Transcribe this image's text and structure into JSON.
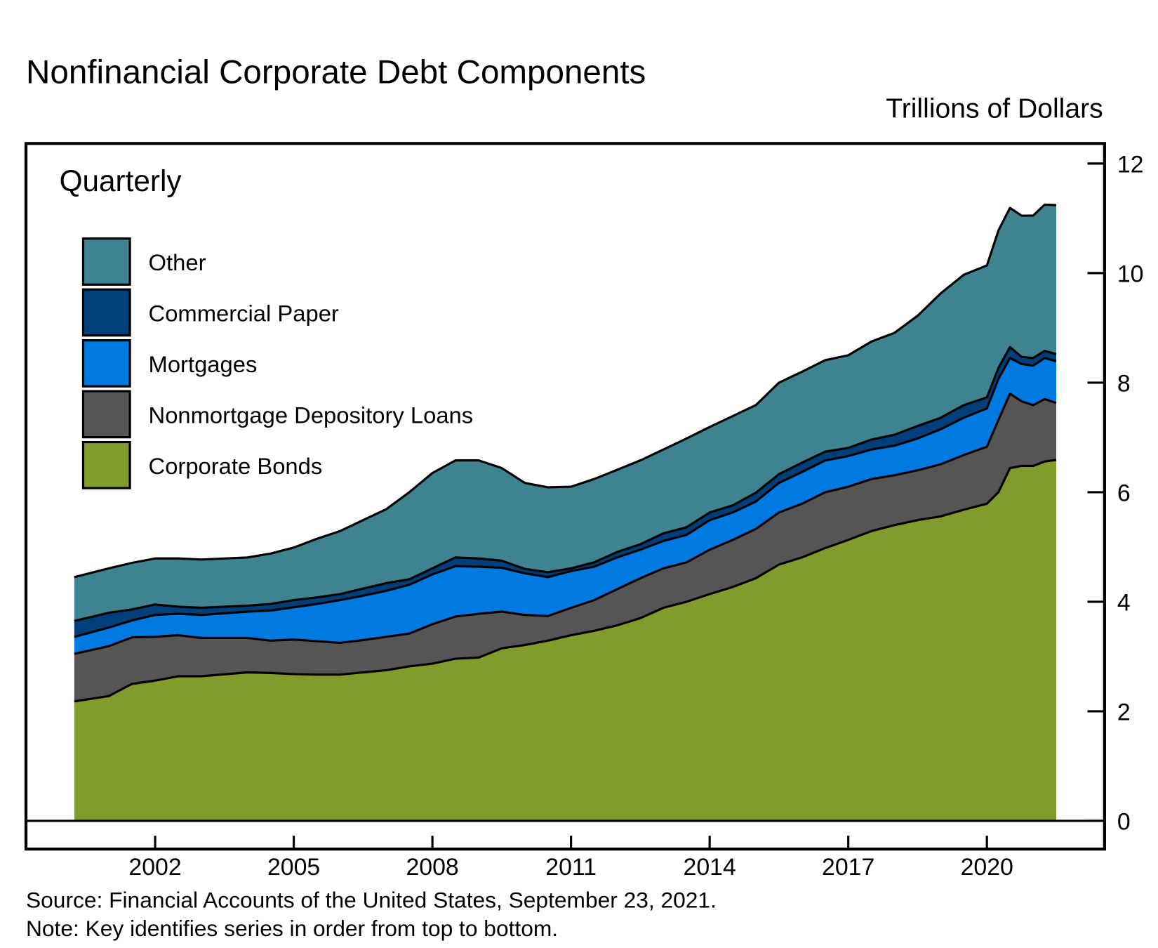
{
  "chart_data": {
    "type": "area",
    "stacked": true,
    "title": "Nonfinancial Corporate Debt Components",
    "ylabel": "Trillions of Dollars",
    "annotation": "Quarterly",
    "ylim": [
      0,
      12
    ],
    "yticks": [
      0,
      2,
      4,
      6,
      8,
      10,
      12
    ],
    "xticks": [
      2002,
      2005,
      2008,
      2011,
      2014,
      2017,
      2020
    ],
    "xlim": [
      1999.2,
      2022.4
    ],
    "grid": false,
    "legend_placement": "top-left",
    "x": [
      2000.25,
      2001,
      2001.5,
      2002,
      2002.5,
      2003,
      2004,
      2004.5,
      2005,
      2005.5,
      2006,
      2006.5,
      2007,
      2007.5,
      2008,
      2008.5,
      2009,
      2009.5,
      2010,
      2010.5,
      2011,
      2011.5,
      2012,
      2012.5,
      2013,
      2013.5,
      2014,
      2014.5,
      2015,
      2015.5,
      2016,
      2016.5,
      2017,
      2017.5,
      2018,
      2018.5,
      2019,
      2019.5,
      2020,
      2020.25,
      2020.5,
      2020.75,
      2021,
      2021.25,
      2021.5
    ],
    "series": [
      {
        "name": "Corporate Bonds",
        "color": "#809C2C",
        "values": [
          2.18,
          2.28,
          2.5,
          2.56,
          2.64,
          2.64,
          2.71,
          2.7,
          2.68,
          2.67,
          2.67,
          2.71,
          2.75,
          2.82,
          2.87,
          2.96,
          2.98,
          3.15,
          3.21,
          3.29,
          3.39,
          3.47,
          3.57,
          3.7,
          3.89,
          4.0,
          4.14,
          4.27,
          4.43,
          4.68,
          4.81,
          4.98,
          5.13,
          5.29,
          5.4,
          5.49,
          5.56,
          5.68,
          5.79,
          6.0,
          6.44,
          6.48,
          6.48,
          6.56,
          6.59
        ]
      },
      {
        "name": "Nonmortgage Depository Loans",
        "color": "#555555",
        "values": [
          0.87,
          0.91,
          0.85,
          0.8,
          0.75,
          0.7,
          0.63,
          0.59,
          0.63,
          0.61,
          0.58,
          0.59,
          0.61,
          0.6,
          0.72,
          0.77,
          0.8,
          0.67,
          0.55,
          0.45,
          0.5,
          0.56,
          0.66,
          0.73,
          0.72,
          0.72,
          0.81,
          0.86,
          0.9,
          0.95,
          0.98,
          1.02,
          0.97,
          0.95,
          0.91,
          0.91,
          0.95,
          1.0,
          1.04,
          1.32,
          1.36,
          1.18,
          1.11,
          1.14,
          1.04
        ]
      },
      {
        "name": "Mortgages",
        "color": "#0079E0",
        "values": [
          0.31,
          0.34,
          0.31,
          0.4,
          0.39,
          0.42,
          0.48,
          0.55,
          0.59,
          0.68,
          0.78,
          0.81,
          0.84,
          0.89,
          0.91,
          0.92,
          0.86,
          0.8,
          0.76,
          0.71,
          0.67,
          0.61,
          0.58,
          0.52,
          0.5,
          0.5,
          0.54,
          0.5,
          0.5,
          0.54,
          0.58,
          0.58,
          0.56,
          0.54,
          0.54,
          0.58,
          0.64,
          0.68,
          0.7,
          0.75,
          0.65,
          0.68,
          0.72,
          0.75,
          0.76
        ]
      },
      {
        "name": "Commercial Paper",
        "color": "#003F7A",
        "values": [
          0.29,
          0.27,
          0.2,
          0.19,
          0.13,
          0.13,
          0.11,
          0.12,
          0.13,
          0.12,
          0.11,
          0.13,
          0.14,
          0.1,
          0.11,
          0.16,
          0.15,
          0.13,
          0.08,
          0.09,
          0.05,
          0.08,
          0.1,
          0.1,
          0.14,
          0.14,
          0.14,
          0.13,
          0.16,
          0.16,
          0.17,
          0.16,
          0.15,
          0.18,
          0.2,
          0.23,
          0.21,
          0.23,
          0.2,
          0.2,
          0.2,
          0.13,
          0.14,
          0.13,
          0.13
        ]
      },
      {
        "name": "Other",
        "color": "#3F8391",
        "values": [
          0.8,
          0.81,
          0.85,
          0.84,
          0.88,
          0.88,
          0.88,
          0.92,
          0.96,
          1.07,
          1.15,
          1.25,
          1.35,
          1.59,
          1.74,
          1.77,
          1.79,
          1.69,
          1.57,
          1.55,
          1.49,
          1.52,
          1.5,
          1.53,
          1.53,
          1.62,
          1.56,
          1.63,
          1.6,
          1.67,
          1.66,
          1.67,
          1.69,
          1.79,
          1.86,
          2.01,
          2.27,
          2.38,
          2.41,
          2.51,
          2.54,
          2.58,
          2.6,
          2.67,
          2.72
        ]
      }
    ],
    "legend_order": [
      "Other",
      "Commercial Paper",
      "Mortgages",
      "Nonmortgage Depository Loans",
      "Corporate Bonds"
    ],
    "source": "Source: Financial Accounts of the United States, September 23, 2021.",
    "note": "Note: Key identifies series in order from top to bottom."
  }
}
